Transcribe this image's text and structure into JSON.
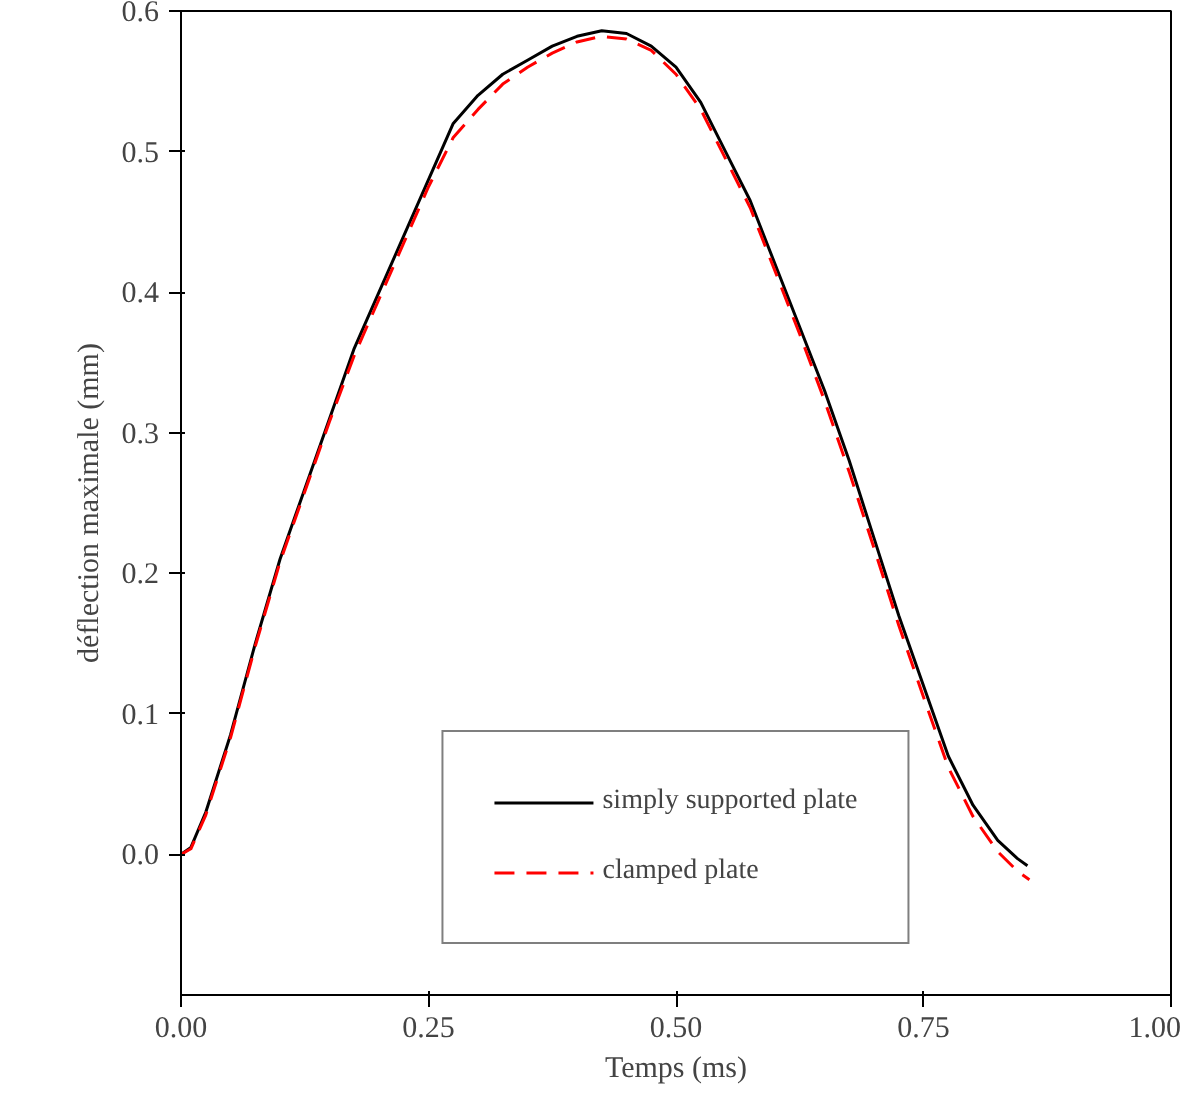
{
  "chart_data": {
    "type": "line",
    "xlabel": "Temps (ms)",
    "ylabel": "déflection maximale (mm)",
    "xlim": [
      0,
      1.0
    ],
    "ylim": [
      -0.1,
      0.6
    ],
    "xticks": [
      {
        "value": 0,
        "label": "0.00"
      },
      {
        "value": 0.25,
        "label": "0.25"
      },
      {
        "value": 0.5,
        "label": "0.50"
      },
      {
        "value": 0.75,
        "label": "0.75"
      },
      {
        "value": 1.0,
        "label": "1.00"
      }
    ],
    "yticks": [
      {
        "value": 0,
        "label": "0.0"
      },
      {
        "value": 0.1,
        "label": "0.1"
      },
      {
        "value": 0.2,
        "label": "0.2"
      },
      {
        "value": 0.3,
        "label": "0.3"
      },
      {
        "value": 0.4,
        "label": "0.4"
      },
      {
        "value": 0.5,
        "label": "0.5"
      },
      {
        "value": 0.6,
        "label": "0.6"
      }
    ],
    "grid": false,
    "legend": "bottom",
    "marker": "none",
    "series": [
      {
        "name": "simply supported plate",
        "color": "#000000",
        "line_style": "solid",
        "x": [
          0,
          0.01,
          0.025,
          0.05,
          0.075,
          0.1,
          0.125,
          0.15,
          0.175,
          0.2,
          0.225,
          0.25,
          0.275,
          0.3,
          0.325,
          0.35,
          0.375,
          0.4,
          0.425,
          0.45,
          0.475,
          0.5,
          0.525,
          0.55,
          0.575,
          0.6,
          0.625,
          0.65,
          0.675,
          0.7,
          0.725,
          0.75,
          0.775,
          0.8,
          0.825,
          0.845,
          0.855
        ],
        "values": [
          0,
          0.005,
          0.03,
          0.085,
          0.15,
          0.21,
          0.26,
          0.31,
          0.36,
          0.4,
          0.44,
          0.48,
          0.52,
          0.54,
          0.555,
          0.565,
          0.575,
          0.582,
          0.586,
          0.584,
          0.575,
          0.56,
          0.535,
          0.5,
          0.465,
          0.42,
          0.375,
          0.33,
          0.28,
          0.225,
          0.17,
          0.12,
          0.07,
          0.035,
          0.01,
          -0.003,
          -0.008
        ]
      },
      {
        "name": "clamped plate",
        "color": "#ff0000",
        "line_style": "dashed",
        "x": [
          0,
          0.01,
          0.025,
          0.05,
          0.075,
          0.1,
          0.125,
          0.15,
          0.175,
          0.2,
          0.225,
          0.25,
          0.275,
          0.3,
          0.325,
          0.35,
          0.375,
          0.4,
          0.425,
          0.45,
          0.475,
          0.5,
          0.525,
          0.55,
          0.575,
          0.6,
          0.625,
          0.65,
          0.675,
          0.7,
          0.725,
          0.75,
          0.775,
          0.8,
          0.825,
          0.845,
          0.857
        ],
        "values": [
          0,
          0.004,
          0.028,
          0.083,
          0.148,
          0.208,
          0.258,
          0.308,
          0.355,
          0.395,
          0.435,
          0.475,
          0.51,
          0.53,
          0.548,
          0.56,
          0.57,
          0.578,
          0.582,
          0.58,
          0.572,
          0.555,
          0.53,
          0.495,
          0.46,
          0.415,
          0.37,
          0.323,
          0.272,
          0.218,
          0.163,
          0.112,
          0.062,
          0.027,
          0.002,
          -0.012,
          -0.018
        ]
      }
    ]
  }
}
